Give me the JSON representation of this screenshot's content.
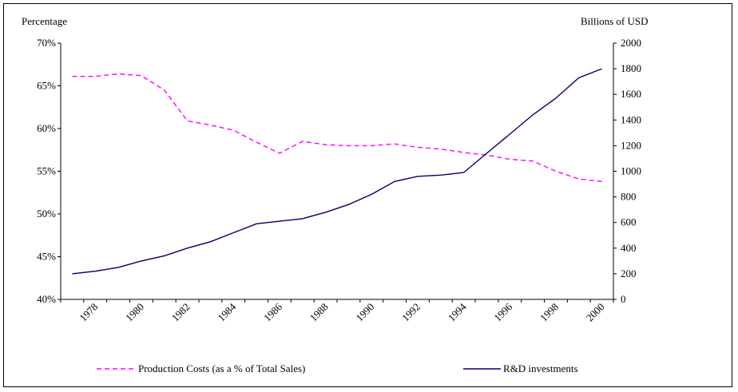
{
  "chart_data": {
    "type": "line",
    "title": "",
    "left_axis_title": "Percentage",
    "right_axis_title": "Billions of USD",
    "left_ylim": [
      40,
      70
    ],
    "left_ticks": [
      "40%",
      "45%",
      "50%",
      "55%",
      "60%",
      "65%",
      "70%"
    ],
    "right_ylim": [
      0,
      2000
    ],
    "right_ticks": [
      "0",
      "200",
      "400",
      "600",
      "800",
      "1000",
      "1200",
      "1400",
      "1600",
      "1800",
      "2000"
    ],
    "x_tick_labels": [
      "1978",
      "1980",
      "1982",
      "1984",
      "1986",
      "1988",
      "1990",
      "1992",
      "1994",
      "1996",
      "1998",
      "2000"
    ],
    "x": [
      1977,
      1978,
      1979,
      1980,
      1981,
      1982,
      1983,
      1984,
      1985,
      1986,
      1987,
      1988,
      1989,
      1990,
      1991,
      1992,
      1993,
      1994,
      1995,
      1996,
      1997,
      1998,
      1999,
      2000
    ],
    "grid": false,
    "legend_position": "bottom",
    "series": [
      {
        "name": "Production Costs (as a % of Total Sales)",
        "axis": "left",
        "color": "#ff00ff",
        "dash": true,
        "values": [
          66.1,
          66.1,
          66.4,
          66.2,
          64.5,
          60.9,
          60.4,
          59.8,
          58.4,
          57.1,
          58.5,
          58.1,
          58.0,
          58.0,
          58.2,
          57.8,
          57.6,
          57.2,
          56.9,
          56.4,
          56.2,
          55.0,
          54.1,
          53.8
        ]
      },
      {
        "name": "R&D investments",
        "axis": "right",
        "color": "#000066",
        "dash": false,
        "values": [
          200,
          220,
          250,
          300,
          340,
          400,
          450,
          520,
          590,
          610,
          630,
          680,
          740,
          820,
          920,
          960,
          970,
          990,
          1140,
          1290,
          1440,
          1570,
          1730,
          1800
        ]
      }
    ]
  }
}
